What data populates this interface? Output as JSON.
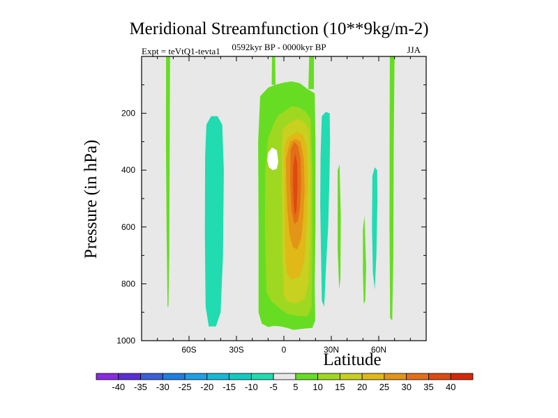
{
  "chart_data": {
    "type": "heatmap",
    "title": "Meridional Streamfunction (10**9kg/m-2)",
    "subtitle": "0592kyr BP - 0000kyr BP",
    "left_string": "Expt = teVtQ1-tevta1",
    "right_string": "JJA",
    "xlabel": "Latitude",
    "ylabel": "Pressure (in hPa)",
    "x_ticks": [
      "60S",
      "30S",
      "0",
      "30N",
      "60N"
    ],
    "x_tick_values": [
      -60,
      -30,
      0,
      30,
      60
    ],
    "y_ticks": [
      "200",
      "400",
      "600",
      "800",
      "1000"
    ],
    "y_tick_values": [
      200,
      400,
      600,
      800,
      1000
    ],
    "xlim": [
      -90,
      90
    ],
    "ylim": [
      1000,
      0
    ],
    "colorbar_labels": [
      "-40",
      "-35",
      "-30",
      "-25",
      "-20",
      "-15",
      "-10",
      "-5",
      "5",
      "10",
      "15",
      "20",
      "25",
      "30",
      "35",
      "40"
    ],
    "colorbar_colors": [
      "#8a2be2",
      "#5a2fd6",
      "#3a5fd8",
      "#1e7fe0",
      "#1ea0e6",
      "#16b8d8",
      "#12cbc0",
      "#20dcb0",
      "#e8e8e8",
      "#66dd22",
      "#9fd820",
      "#c8d020",
      "#e0b818",
      "#e39518",
      "#e46e18",
      "#de4a10",
      "#d62808"
    ],
    "features": [
      {
        "name": "positive-cell-equatorial",
        "lat_range": [
          -15,
          20
        ],
        "p_range": [
          100,
          960
        ],
        "max": 35
      },
      {
        "name": "negative-cell-50s",
        "lat_range": [
          -50,
          -38
        ],
        "p_range": [
          220,
          950
        ],
        "min": -5
      },
      {
        "name": "negative-cell-25n",
        "lat_range": [
          22,
          30
        ],
        "p_range": [
          200,
          880
        ],
        "min": -5
      },
      {
        "name": "negative-cell-57n",
        "lat_range": [
          55,
          60
        ],
        "p_range": [
          400,
          800
        ],
        "min": -5
      }
    ]
  }
}
